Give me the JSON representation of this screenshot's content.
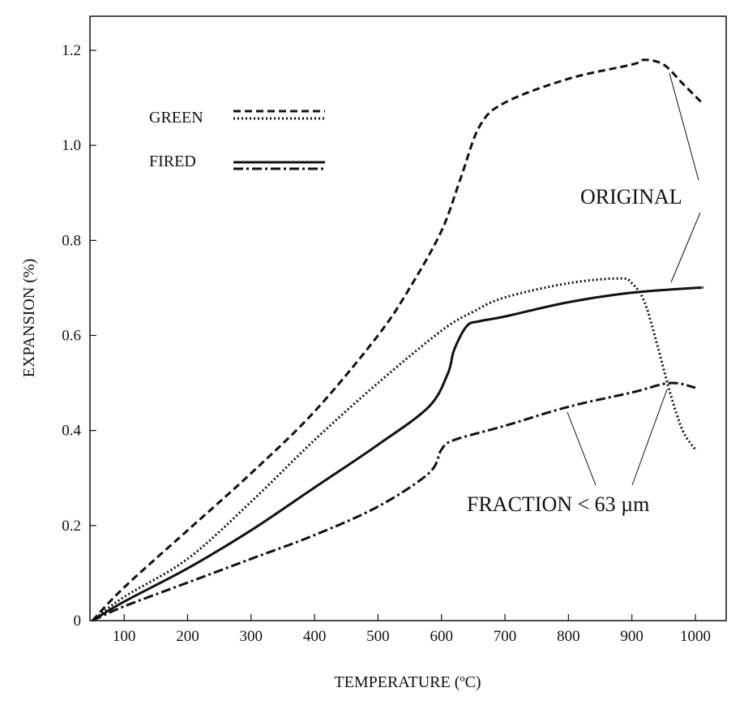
{
  "chart_data": {
    "type": "line",
    "xlabel": "TEMPERATURE (ºC)",
    "ylabel": "EXPANSION (%)",
    "xlim": [
      30,
      1050
    ],
    "ylim": [
      0,
      1.25
    ],
    "x_ticks": [
      100,
      200,
      300,
      400,
      500,
      600,
      700,
      800,
      900,
      1000
    ],
    "y_ticks": [
      0,
      0.2,
      0.4,
      0.6,
      0.8,
      1.0,
      1.2
    ],
    "y_tick_labels": [
      "0",
      "0.2",
      "0.4",
      "0.6",
      "0.8",
      "1.0",
      "1.2"
    ],
    "grid": false,
    "legend": {
      "placement": "top-left",
      "entries": [
        {
          "label": "GREEN",
          "styles": [
            "dashed",
            "dotted"
          ]
        },
        {
          "label": "FIRED",
          "styles": [
            "solid",
            "dash-dot"
          ]
        }
      ]
    },
    "annotations": [
      {
        "text": "ORIGINAL",
        "points_to": [
          "Original (green)",
          "Original (fired)"
        ]
      },
      {
        "text": "FRACTION < 63 µm",
        "points_to": [
          "Fraction < 63 µm (fired)",
          "Fraction < 63 µm (green)"
        ]
      }
    ],
    "series": [
      {
        "name": "Original (green)",
        "state": "green",
        "style": "dashed",
        "x": [
          50,
          100,
          200,
          300,
          400,
          500,
          550,
          600,
          630,
          660,
          700,
          800,
          900,
          920,
          950,
          980,
          1010
        ],
        "y": [
          0,
          0.07,
          0.19,
          0.31,
          0.44,
          0.6,
          0.7,
          0.82,
          0.93,
          1.04,
          1.09,
          1.14,
          1.17,
          1.18,
          1.17,
          1.13,
          1.09
        ]
      },
      {
        "name": "Fraction < 63 µm (green)",
        "state": "green",
        "style": "dotted",
        "x": [
          50,
          100,
          200,
          300,
          400,
          500,
          600,
          650,
          700,
          800,
          880,
          900,
          920,
          940,
          960,
          980,
          1000
        ],
        "y": [
          0,
          0.05,
          0.13,
          0.25,
          0.38,
          0.5,
          0.61,
          0.65,
          0.68,
          0.71,
          0.72,
          0.71,
          0.67,
          0.58,
          0.48,
          0.4,
          0.36
        ]
      },
      {
        "name": "Original (fired)",
        "state": "fired",
        "style": "solid",
        "x": [
          50,
          100,
          200,
          300,
          400,
          500,
          580,
          610,
          620,
          640,
          660,
          700,
          800,
          900,
          1000,
          1010
        ],
        "y": [
          0,
          0.04,
          0.11,
          0.19,
          0.28,
          0.37,
          0.45,
          0.52,
          0.57,
          0.62,
          0.63,
          0.64,
          0.67,
          0.69,
          0.7,
          0.7
        ]
      },
      {
        "name": "Fraction < 63 µm (fired)",
        "state": "fired",
        "style": "dash-dot",
        "x": [
          50,
          100,
          200,
          300,
          400,
          500,
          580,
          600,
          620,
          700,
          800,
          900,
          960,
          1000
        ],
        "y": [
          0,
          0.03,
          0.08,
          0.13,
          0.18,
          0.24,
          0.31,
          0.36,
          0.38,
          0.41,
          0.45,
          0.48,
          0.5,
          0.49
        ]
      }
    ]
  }
}
